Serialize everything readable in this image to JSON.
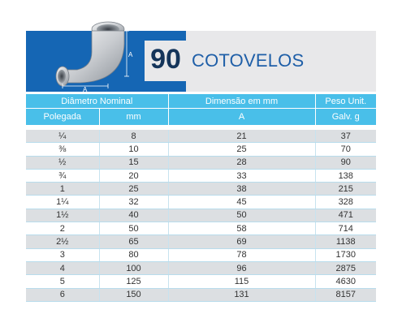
{
  "header": {
    "number": "90",
    "title": "COTOVELOS",
    "dim_a": "A"
  },
  "columns": {
    "diametro": "Diâmetro Nominal",
    "dimensao": "Dimensão em mm",
    "peso": "Peso Unit.",
    "polegada": "Polegada",
    "mm": "mm",
    "a": "A",
    "galv": "Galv. g"
  },
  "rows": [
    {
      "pol": "¼",
      "mm": "8",
      "a": "21",
      "peso": "37"
    },
    {
      "pol": "⅜",
      "mm": "10",
      "a": "25",
      "peso": "70"
    },
    {
      "pol": "½",
      "mm": "15",
      "a": "28",
      "peso": "90"
    },
    {
      "pol": "¾",
      "mm": "20",
      "a": "33",
      "peso": "138"
    },
    {
      "pol": "1",
      "mm": "25",
      "a": "38",
      "peso": "215"
    },
    {
      "pol": "1¼",
      "mm": "32",
      "a": "45",
      "peso": "328"
    },
    {
      "pol": "1½",
      "mm": "40",
      "a": "50",
      "peso": "471"
    },
    {
      "pol": "2",
      "mm": "50",
      "a": "58",
      "peso": "714"
    },
    {
      "pol": "2½",
      "mm": "65",
      "a": "69",
      "peso": "1138"
    },
    {
      "pol": "3",
      "mm": "80",
      "a": "78",
      "peso": "1730"
    },
    {
      "pol": "4",
      "mm": "100",
      "a": "96",
      "peso": "2875"
    },
    {
      "pol": "5",
      "mm": "125",
      "a": "115",
      "peso": "4630"
    },
    {
      "pol": "6",
      "mm": "150",
      "a": "131",
      "peso": "8157"
    }
  ],
  "colors": {
    "banner_blue": "#1566b4",
    "header_cyan": "#49bfe9",
    "row_gray": "#dcdfe2",
    "title_blue": "#1f5fa8"
  }
}
